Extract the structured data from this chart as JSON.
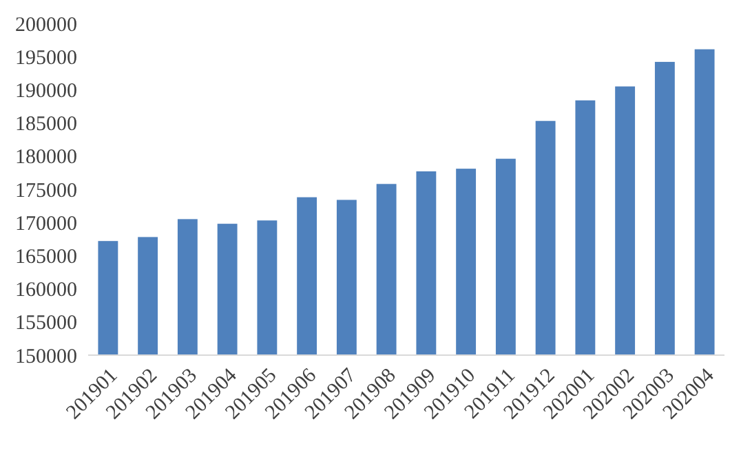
{
  "chart_data": {
    "type": "bar",
    "categories": [
      "201901",
      "201902",
      "201903",
      "201904",
      "201905",
      "201906",
      "201907",
      "201908",
      "201909",
      "201910",
      "201911",
      "201912",
      "202001",
      "202002",
      "202003",
      "202004"
    ],
    "values": [
      167200,
      167800,
      170500,
      169800,
      170300,
      173800,
      173400,
      175800,
      177700,
      178100,
      179600,
      185300,
      188400,
      190500,
      194200,
      196100
    ],
    "color": "#4f81bd",
    "ylim": [
      150000,
      200000
    ],
    "yticks": [
      150000,
      155000,
      160000,
      165000,
      170000,
      175000,
      180000,
      185000,
      190000,
      195000,
      200000
    ],
    "grid": false
  }
}
